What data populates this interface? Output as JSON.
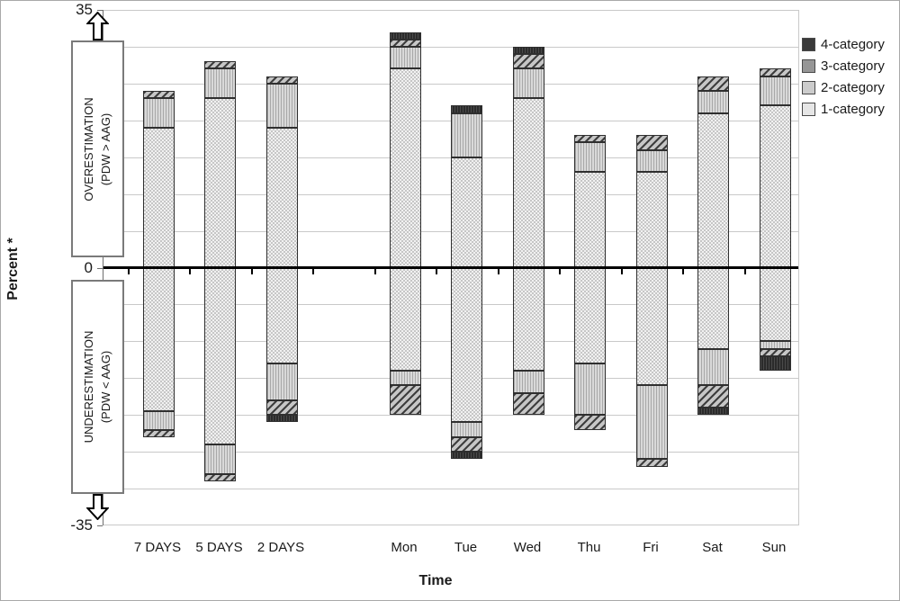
{
  "chart_data": {
    "type": "bar",
    "variant": "diverging stacked bar (overestimation above zero, underestimation below zero)",
    "title": "",
    "xlabel": "Time",
    "ylabel": "Percent *",
    "ylim": [
      -35,
      35
    ],
    "yticks": [
      35,
      30,
      25,
      20,
      15,
      10,
      5,
      0,
      -5,
      -10,
      -15,
      -20,
      -25,
      -30,
      -35
    ],
    "grid": true,
    "legend_position": "right",
    "categories": [
      "7 DAYS",
      "5 DAYS",
      "2 DAYS",
      "Mon",
      "Tue",
      "Wed",
      "Thu",
      "Fri",
      "Sat",
      "Sun"
    ],
    "category_slots": [
      0,
      1,
      2,
      4,
      5,
      6,
      7,
      8,
      9,
      10
    ],
    "series": [
      {
        "name": "1-category",
        "pattern": "dotted-check",
        "swatch": "#e6e6e6",
        "overestimation": [
          19,
          23,
          19,
          27,
          15,
          23,
          13,
          13,
          21,
          22
        ],
        "underestimation": [
          -19.5,
          -24,
          -13,
          -14,
          -21,
          -14,
          -13,
          -16,
          -11,
          -10
        ]
      },
      {
        "name": "2-category",
        "pattern": "vertical-lines",
        "swatch": "#cccccc",
        "overestimation": [
          4,
          4,
          6,
          3,
          6,
          4,
          4,
          3,
          3,
          4
        ],
        "underestimation": [
          -2.5,
          -4,
          -5,
          -2,
          -2,
          -3,
          -7,
          -10,
          -5,
          -1
        ]
      },
      {
        "name": "3-category",
        "pattern": "diagonal-hatch",
        "swatch": "#969696",
        "overestimation": [
          1,
          1,
          1,
          1,
          0,
          2,
          1,
          2,
          2,
          1
        ],
        "underestimation": [
          -1,
          -1,
          -2,
          -4,
          -2,
          -3,
          -2,
          -1,
          -3,
          -1
        ]
      },
      {
        "name": "4-category",
        "pattern": "dark-solid",
        "swatch": "#3a3a3a",
        "overestimation": [
          0,
          0,
          0,
          1,
          1,
          1,
          0,
          0,
          0,
          0
        ],
        "underestimation": [
          0,
          0,
          -1,
          0,
          -1,
          0,
          0,
          0,
          -1,
          -2
        ]
      }
    ],
    "totals_overestimation": [
      24,
      28,
      26,
      32,
      22,
      30,
      18,
      18,
      26,
      27
    ],
    "totals_underestimation": [
      -23,
      -29,
      -21,
      -20,
      -26,
      -20,
      -22,
      -27,
      -20,
      -14
    ],
    "legend_order": [
      "4-category",
      "3-category",
      "2-category",
      "1-category"
    ],
    "annotations": {
      "overestimation": {
        "line1": "OVERESTIMATION",
        "line2": "(PDW > AAG)",
        "arrow": "up"
      },
      "underestimation": {
        "line1": "UNDERESTIMATION",
        "line2": "(PDW < AAG)",
        "arrow": "down"
      }
    },
    "colors": {
      "grid": "#c9c9c9",
      "zero_line": "#000000",
      "text": "#1a1a1a",
      "background": "#ffffff"
    }
  }
}
